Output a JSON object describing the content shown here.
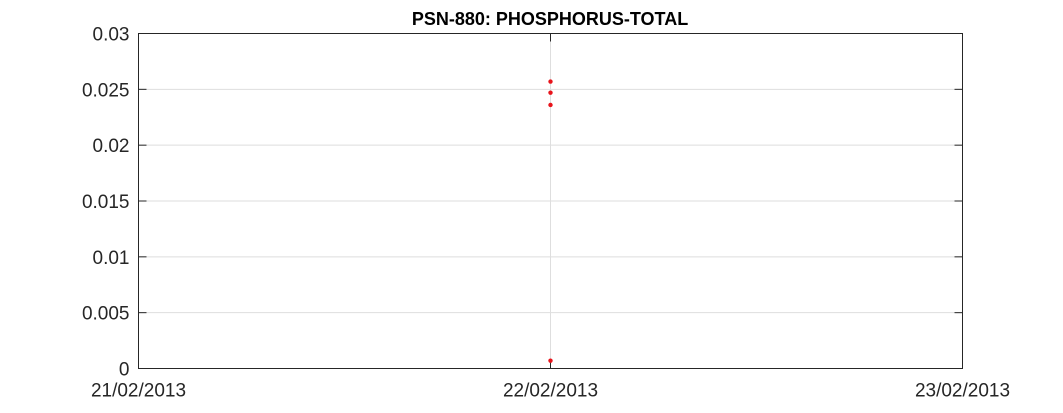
{
  "chart_data": {
    "type": "scatter",
    "title": "PSN-880: PHOSPHORUS-TOTAL",
    "xlabel": "",
    "ylabel": "",
    "x_ticks": [
      "21/02/2013",
      "22/02/2013",
      "23/02/2013"
    ],
    "xlim": [
      "21/02/2013",
      "23/02/2013"
    ],
    "ylim": [
      0,
      0.03
    ],
    "y_ticks": [
      "0",
      "0.005",
      "0.01",
      "0.015",
      "0.02",
      "0.025",
      "0.03"
    ],
    "grid": true,
    "series": [
      {
        "color": "#e8141b",
        "points": [
          {
            "x": "22/02/2013",
            "y": 0.0257
          },
          {
            "x": "22/02/2013",
            "y": 0.0247
          },
          {
            "x": "22/02/2013",
            "y": 0.0236
          },
          {
            "x": "22/02/2013",
            "y": 0.0007
          }
        ]
      }
    ]
  }
}
